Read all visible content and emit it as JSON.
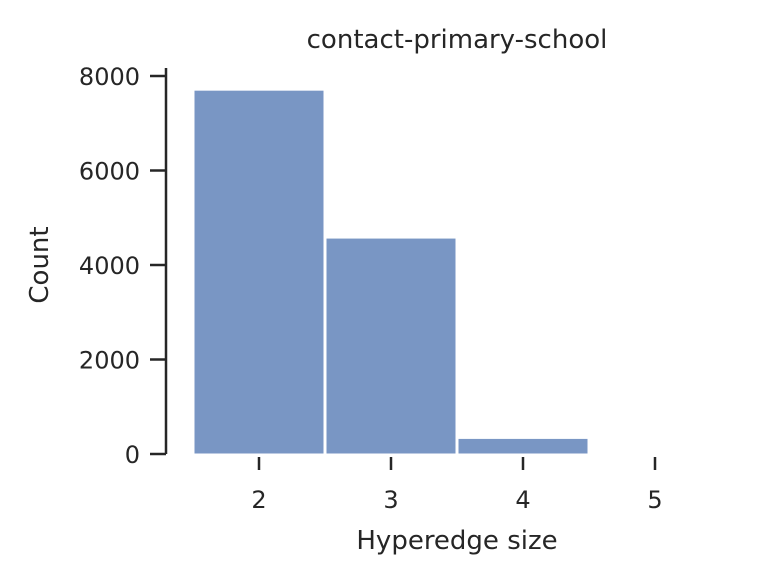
{
  "chart_data": {
    "type": "bar",
    "title": "contact-primary-school",
    "xlabel": "Hyperedge size",
    "ylabel": "Count",
    "categories": [
      "2",
      "3",
      "4",
      "5"
    ],
    "values": [
      7700,
      4570,
      330,
      0
    ],
    "ylim": [
      0,
      8000
    ],
    "yticks": [
      "0",
      "2000",
      "4000",
      "6000",
      "8000"
    ],
    "grid": false,
    "bar_color": "#7996c4",
    "axis_color": "#262626"
  }
}
